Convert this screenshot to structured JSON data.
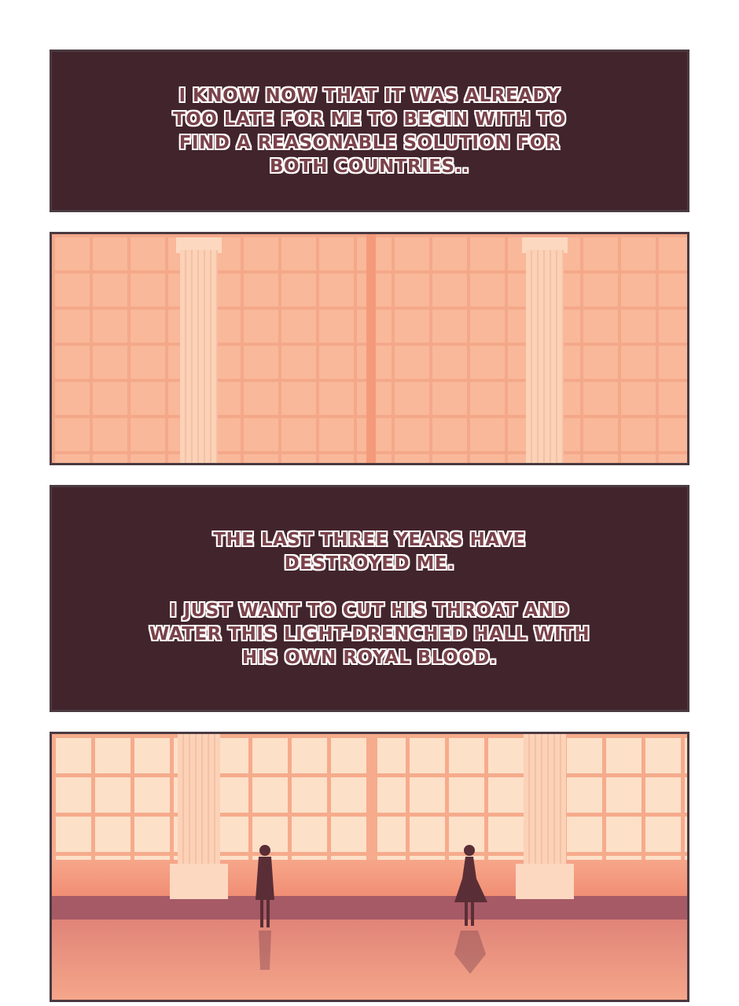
{
  "panels": [
    {
      "type": "caption",
      "text": "I know now that it was already\ntoo late for me to begin with to\nfind a reasonable solution for\nboth countries.."
    },
    {
      "type": "scene",
      "scene": "empty palace hall with columns and tall windows"
    },
    {
      "type": "caption",
      "text": "The last three years have\ndestroyed me.\n\nI just want to cut his throat and\nwater this light-drenched hall with\nhis own royal blood."
    },
    {
      "type": "scene",
      "scene": "two silhouettes standing apart in the sunlit hall"
    }
  ],
  "colors": {
    "caption_bg": "#42242c",
    "caption_text": "#7a424a",
    "hall": "#f9b899",
    "border": "#4b3a41"
  }
}
